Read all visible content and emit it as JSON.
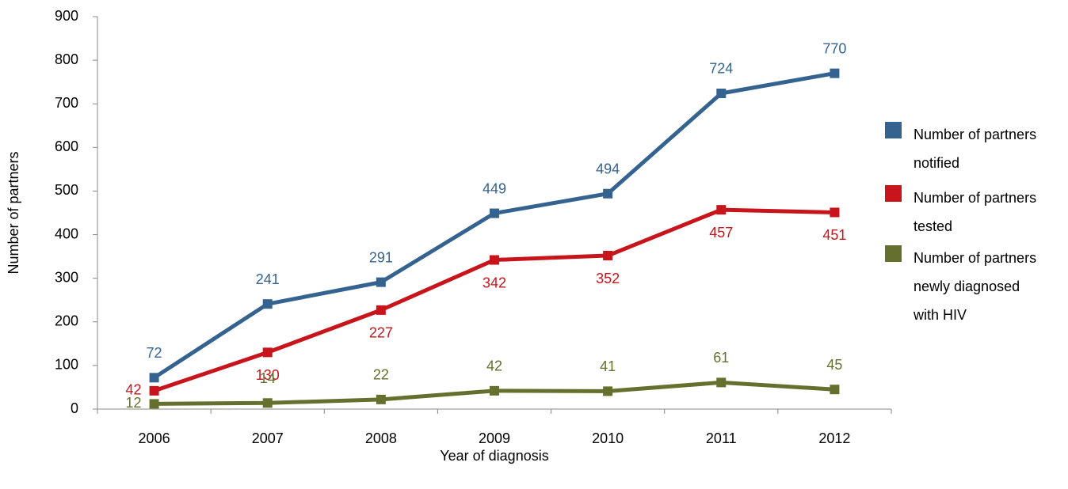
{
  "chart_data": {
    "type": "line",
    "x_label": "Year of diagnosis",
    "y_label": "Number of partners",
    "categories": [
      "2006",
      "2007",
      "2008",
      "2009",
      "2010",
      "2011",
      "2012"
    ],
    "series": [
      {
        "name": "Number of partners notified",
        "color": "#356390",
        "values": [
          72,
          241,
          291,
          449,
          494,
          724,
          770
        ]
      },
      {
        "name": "Number of partners tested",
        "color": "#c8141b",
        "values": [
          42,
          130,
          227,
          342,
          352,
          457,
          451
        ]
      },
      {
        "name": "Number of partners newly diagnosed with HIV",
        "color": "#66702e",
        "values": [
          12,
          14,
          22,
          42,
          41,
          61,
          45
        ]
      }
    ],
    "ylim": [
      0,
      900
    ],
    "yticks": [
      0,
      100,
      200,
      300,
      400,
      500,
      600,
      700,
      800,
      900
    ],
    "grid": false,
    "legend": "right"
  }
}
